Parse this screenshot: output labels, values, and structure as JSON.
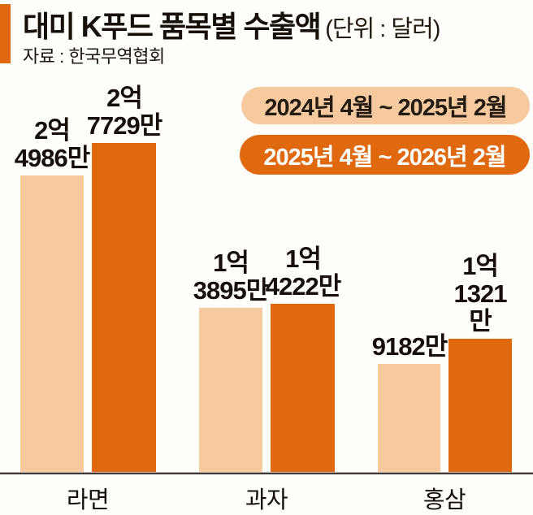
{
  "header": {
    "title": "대미 K푸드 품목별 수출액",
    "unit": "(단위 : 달러)",
    "source": "자료 : 한국무역협회"
  },
  "legend": [
    {
      "label": "2024년 4월 ~ 2025년 2월",
      "color": "#f6c99e",
      "text_color": "#241b12"
    },
    {
      "label": "2025년 4월 ~ 2026년 2월",
      "color": "#e0690f",
      "text_color": "#ffffff"
    }
  ],
  "colors": {
    "accent_orange": "#e0690f",
    "light_peach": "#f6c99e",
    "axis": "#3f3a36",
    "background": "#fffefb",
    "text": "#17100a"
  },
  "chart_data": {
    "type": "bar",
    "title": "대미 K푸드 품목별 수출액",
    "unit_label": "(단위 : 달러)",
    "source": "자료 : 한국무역협회",
    "categories": [
      "라면",
      "과자",
      "홍삼"
    ],
    "series": [
      {
        "name": "2024년 4월 ~ 2025년 2월",
        "color": "#f6c99e",
        "values": [
          249860000,
          138950000,
          91820000
        ],
        "value_labels": [
          "2억\n4986만",
          "1억\n3895만",
          "9182만"
        ]
      },
      {
        "name": "2025년 4월 ~ 2026년 2월",
        "color": "#e0690f",
        "values": [
          277290000,
          142220000,
          113210000
        ],
        "value_labels": [
          "2억\n7729만",
          "1억\n4222만",
          "1억\n1321만"
        ]
      }
    ],
    "ylim": [
      0,
      280000000
    ],
    "grid": false,
    "legend_position": "top-right"
  }
}
